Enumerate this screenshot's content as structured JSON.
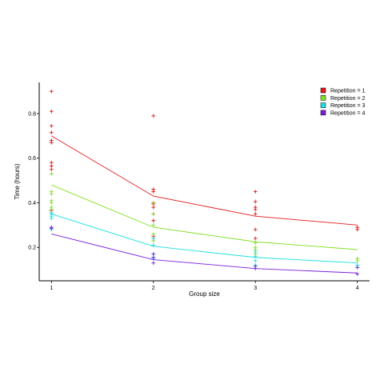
{
  "chart_data": {
    "type": "scatter",
    "xlabel": "Group size",
    "ylabel": "Time (hours)",
    "xlim": [
      0.88,
      4.12
    ],
    "ylim": [
      0.05,
      0.94
    ],
    "x_ticks": [
      1,
      2,
      3,
      4
    ],
    "y_ticks": [
      0.2,
      0.4,
      0.6,
      0.8
    ],
    "legend_position": "top-right",
    "grid": false,
    "series": [
      {
        "name": "Repetition = 1",
        "color": "#e41a1c",
        "line": [
          [
            1,
            0.7
          ],
          [
            2,
            0.43
          ],
          [
            3,
            0.34
          ],
          [
            4,
            0.3
          ]
        ],
        "points": [
          [
            1,
            0.9
          ],
          [
            1,
            0.81
          ],
          [
            1,
            0.745
          ],
          [
            1,
            0.715
          ],
          [
            1,
            0.68
          ],
          [
            1,
            0.67
          ],
          [
            1,
            0.58
          ],
          [
            1,
            0.565
          ],
          [
            1,
            0.55
          ],
          [
            1,
            0.365
          ],
          [
            2,
            0.79
          ],
          [
            2,
            0.46
          ],
          [
            2,
            0.45
          ],
          [
            2,
            0.4
          ],
          [
            2,
            0.395
          ],
          [
            2,
            0.38
          ],
          [
            2,
            0.35
          ],
          [
            2,
            0.32
          ],
          [
            2,
            0.25
          ],
          [
            2,
            0.24
          ],
          [
            3,
            0.45
          ],
          [
            3,
            0.405
          ],
          [
            3,
            0.38
          ],
          [
            3,
            0.37
          ],
          [
            3,
            0.35
          ],
          [
            3,
            0.28
          ],
          [
            3,
            0.24
          ],
          [
            4,
            0.29
          ],
          [
            4,
            0.28
          ]
        ]
      },
      {
        "name": "Repetition = 2",
        "color": "#7fe020",
        "line": [
          [
            1,
            0.48
          ],
          [
            2,
            0.29
          ],
          [
            3,
            0.225
          ],
          [
            4,
            0.19
          ]
        ],
        "points": [
          [
            1,
            0.53
          ],
          [
            1,
            0.45
          ],
          [
            1,
            0.44
          ],
          [
            1,
            0.41
          ],
          [
            1,
            0.4
          ],
          [
            1,
            0.38
          ],
          [
            1,
            0.37
          ],
          [
            2,
            0.4
          ],
          [
            2,
            0.35
          ],
          [
            2,
            0.3
          ],
          [
            2,
            0.26
          ],
          [
            2,
            0.23
          ],
          [
            3,
            0.22
          ],
          [
            3,
            0.2
          ],
          [
            3,
            0.19
          ],
          [
            3,
            0.17
          ],
          [
            4,
            0.15
          ],
          [
            4,
            0.14
          ]
        ]
      },
      {
        "name": "Repetition = 3",
        "color": "#1ee0e0",
        "line": [
          [
            1,
            0.35
          ],
          [
            2,
            0.205
          ],
          [
            3,
            0.155
          ],
          [
            4,
            0.13
          ]
        ],
        "points": [
          [
            1,
            0.355
          ],
          [
            1,
            0.35
          ],
          [
            1,
            0.34
          ],
          [
            1,
            0.33
          ],
          [
            1,
            0.28
          ],
          [
            2,
            0.24
          ],
          [
            2,
            0.21
          ],
          [
            2,
            0.17
          ],
          [
            2,
            0.15
          ],
          [
            3,
            0.18
          ],
          [
            3,
            0.16
          ],
          [
            3,
            0.14
          ],
          [
            3,
            0.12
          ],
          [
            4,
            0.12
          ],
          [
            4,
            0.11
          ]
        ]
      },
      {
        "name": "Repetition = 4",
        "color": "#7b20d8",
        "line": [
          [
            1,
            0.26
          ],
          [
            2,
            0.145
          ],
          [
            3,
            0.105
          ],
          [
            4,
            0.085
          ]
        ],
        "points": [
          [
            1,
            0.29
          ],
          [
            1,
            0.285
          ],
          [
            2,
            0.17
          ],
          [
            2,
            0.155
          ],
          [
            2,
            0.13
          ],
          [
            3,
            0.115
          ],
          [
            3,
            0.105
          ],
          [
            4,
            0.11
          ],
          [
            4,
            0.08
          ]
        ]
      }
    ]
  }
}
